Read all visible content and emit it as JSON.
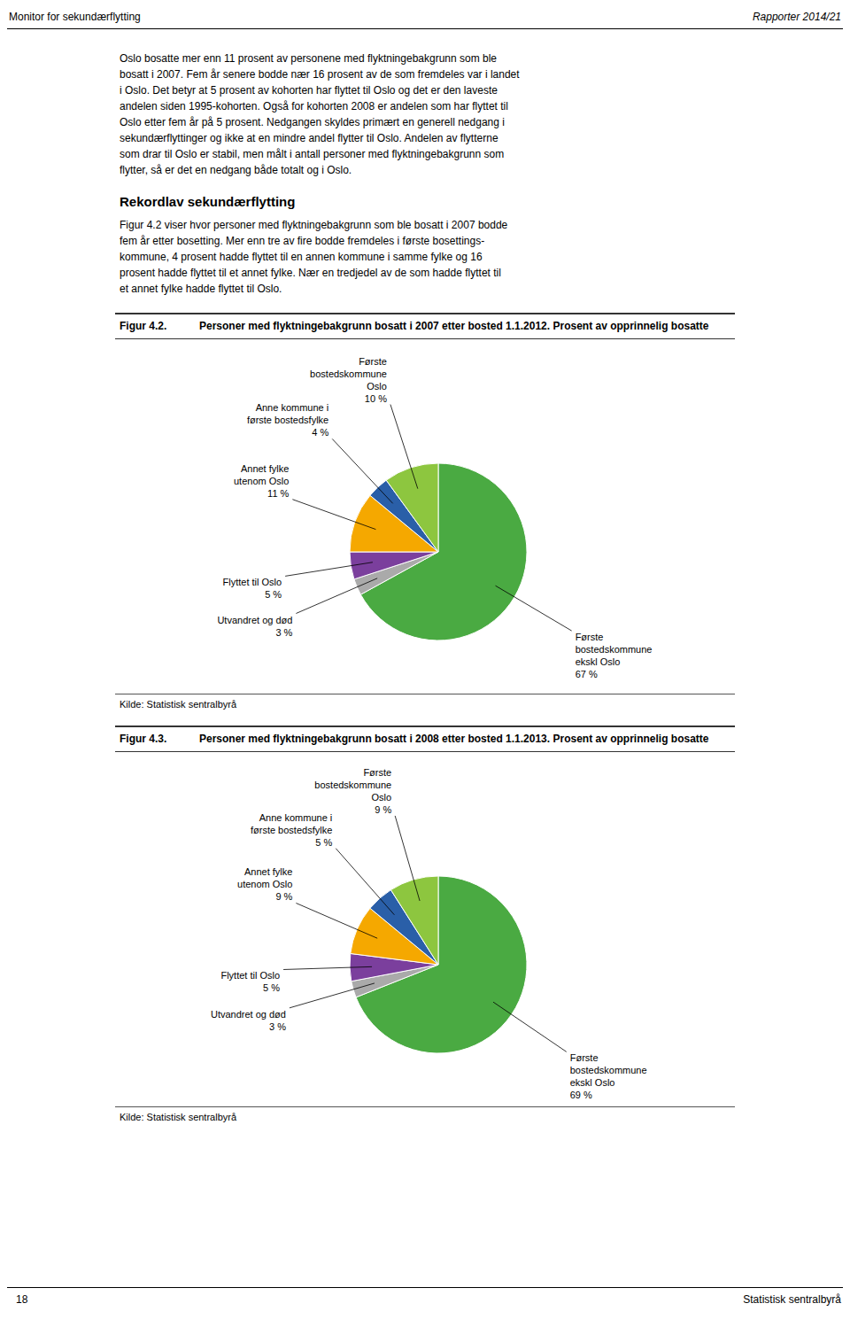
{
  "header_left": "Monitor for sekundærflytting",
  "header_right": "Rapporter 2014/21",
  "page_number": "18",
  "footer": "Statistisk sentralbyrå",
  "body_lines": [
    "Oslo bosatte mer enn 11 prosent av personene med flyktningebakgrunn som ble",
    "bosatt i 2007. Fem år senere bodde nær 16 prosent av de som fremdeles var i landet",
    "i Oslo. Det betyr at 5 prosent av kohorten har flyttet til Oslo og det er den laveste",
    "andelen siden 1995-kohorten. Også for kohorten 2008 er andelen som har flyttet til",
    "Oslo etter fem år på 5 prosent. Nedgangen skyldes primært en generell nedgang i",
    "sekundærflyttinger og ikke at en mindre andel flytter til Oslo. Andelen av flytterne",
    "som drar til Oslo er stabil, men målt i antall personer med flyktningebakgrunn som",
    "flytter, så er det en nedgang både totalt og i Oslo."
  ],
  "section_title": "Rekordlav sekundærflytting",
  "section_lines": [
    "Figur 4.2 viser hvor personer med flyktningebakgrunn som ble bosatt i 2007 bodde",
    "fem år etter bosetting. Mer enn tre av fire bodde fremdeles i første bosettings-",
    "kommune, 4 prosent hadde flyttet til en annen kommune i samme fylke og 16",
    "prosent hadde flyttet til et annet fylke. Nær en tredjedel av de som hadde flyttet til",
    "et annet fylke hadde flyttet til Oslo."
  ],
  "chart_data": [
    {
      "type": "pie",
      "figure_number": "Figur 4.2.",
      "title": "Personer med flyktningebakgrunn bosatt i 2007 etter bosted 1.1.2012. Prosent av opprinnelig bosatte",
      "source": "Kilde: Statistisk sentralbyrå",
      "categories": [
        "Første\nbostedskommune\nekskl Oslo",
        "Utvandret og død",
        "Flyttet til Oslo",
        "Annet fylke\nutenom Oslo",
        "Anne kommune i\nførste bostedsfylke",
        "Første\nbostedskommune\nOslo"
      ],
      "values": [
        67,
        3,
        5,
        11,
        4,
        10
      ],
      "value_labels": [
        "67 %",
        "3 %",
        "5 %",
        "11 %",
        "4 %",
        "10 %"
      ],
      "colors": [
        "#4aaa42",
        "#aaaaaa",
        "#7b3f9d",
        "#f5a800",
        "#2a5fa8",
        "#8dc63f"
      ],
      "data_labels": true
    },
    {
      "type": "pie",
      "figure_number": "Figur 4.3.",
      "title": "Personer med flyktningebakgrunn bosatt i 2008 etter bosted 1.1.2013. Prosent av opprinnelig bosatte",
      "source": "Kilde: Statistisk sentralbyrå",
      "categories": [
        "Første\nbostedskommune\nekskl Oslo",
        "Utvandret og død",
        "Flyttet til Oslo",
        "Annet fylke\nutenom Oslo",
        "Anne kommune i\nførste bostedsfylke",
        "Første\nbostedskommune\nOslo"
      ],
      "values": [
        69,
        3,
        5,
        9,
        5,
        9
      ],
      "value_labels": [
        "69 %",
        "3 %",
        "5 %",
        "9 %",
        "5 %",
        "9 %"
      ],
      "colors": [
        "#4aaa42",
        "#aaaaaa",
        "#7b3f9d",
        "#f5a800",
        "#2a5fa8",
        "#8dc63f"
      ],
      "data_labels": true
    }
  ]
}
